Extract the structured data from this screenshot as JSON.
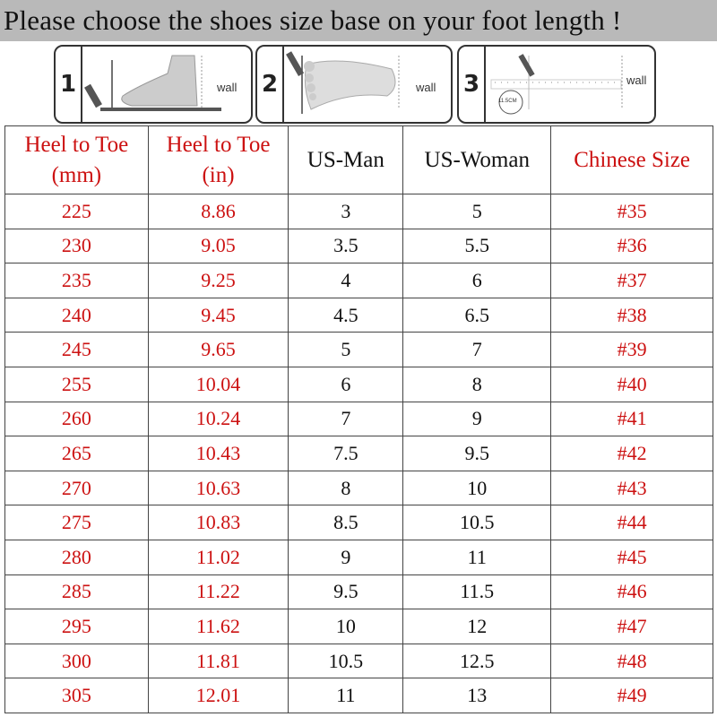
{
  "banner": "Please choose the shoes size base on your foot length !",
  "steps": [
    {
      "number": "1",
      "wall_label": "wall"
    },
    {
      "number": "2",
      "wall_label": "wall"
    },
    {
      "number": "3",
      "wall_label": "wall",
      "ruler_label": "11.5CM"
    }
  ],
  "colors": {
    "red": "#cc1111",
    "banner_bg": "#b9b9b9"
  },
  "table": {
    "headers": [
      "Heel to Toe (mm)",
      "Heel to Toe (in)",
      "US-Man",
      "US-Woman",
      "Chinese Size"
    ],
    "header_lines": [
      [
        "Heel to Toe",
        "(mm)"
      ],
      [
        "Heel to Toe",
        "(in)"
      ],
      [
        "US-Man"
      ],
      [
        "US-Woman"
      ],
      [
        "Chinese Size"
      ]
    ],
    "rows": [
      [
        "225",
        "8.86",
        "3",
        "5",
        "#35"
      ],
      [
        "230",
        "9.05",
        "3.5",
        "5.5",
        "#36"
      ],
      [
        "235",
        "9.25",
        "4",
        "6",
        "#37"
      ],
      [
        "240",
        "9.45",
        "4.5",
        "6.5",
        "#38"
      ],
      [
        "245",
        "9.65",
        "5",
        "7",
        "#39"
      ],
      [
        "255",
        "10.04",
        "6",
        "8",
        "#40"
      ],
      [
        "260",
        "10.24",
        "7",
        "9",
        "#41"
      ],
      [
        "265",
        "10.43",
        "7.5",
        "9.5",
        "#42"
      ],
      [
        "270",
        "10.63",
        "8",
        "10",
        "#43"
      ],
      [
        "275",
        "10.83",
        "8.5",
        "10.5",
        "#44"
      ],
      [
        "280",
        "11.02",
        "9",
        "11",
        "#45"
      ],
      [
        "285",
        "11.22",
        "9.5",
        "11.5",
        "#46"
      ],
      [
        "295",
        "11.62",
        "10",
        "12",
        "#47"
      ],
      [
        "300",
        "11.81",
        "10.5",
        "12.5",
        "#48"
      ],
      [
        "305",
        "12.01",
        "11",
        "13",
        "#49"
      ]
    ]
  }
}
